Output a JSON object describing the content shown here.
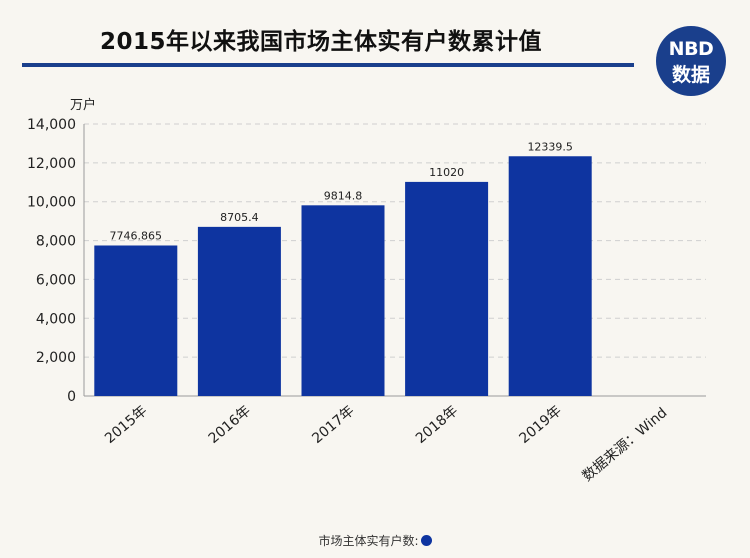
{
  "header": {
    "title": "2015年以来我国市场主体实有户数累计值",
    "logo_brand": "NBD",
    "logo_sub": "数据"
  },
  "colors": {
    "bar": "#0e34a0",
    "accent": "#1a3f8c"
  },
  "chart_data": {
    "type": "bar",
    "title": "2015年以来我国市场主体实有户数累计值",
    "ylabel": "万户",
    "xlabel": "",
    "categories": [
      "2015年",
      "2016年",
      "2017年",
      "2018年",
      "2019年"
    ],
    "values": [
      7746.865,
      8705.4,
      9814.8,
      11020,
      12339.5
    ],
    "data_labels": [
      "7746.865",
      "8705.4",
      "9814.8",
      "11020",
      "12339.5"
    ],
    "ylim": [
      0,
      14000
    ],
    "yticks": [
      0,
      2000,
      4000,
      6000,
      8000,
      10000,
      12000,
      14000
    ],
    "ytick_labels": [
      "0",
      "2,000",
      "4,000",
      "6,000",
      "8,000",
      "10,000",
      "12,000",
      "14,000"
    ],
    "grid": true,
    "legend": {
      "label": "市场主体实有户数:",
      "position": "bottom"
    },
    "source_note": "数据来源：Wind"
  }
}
